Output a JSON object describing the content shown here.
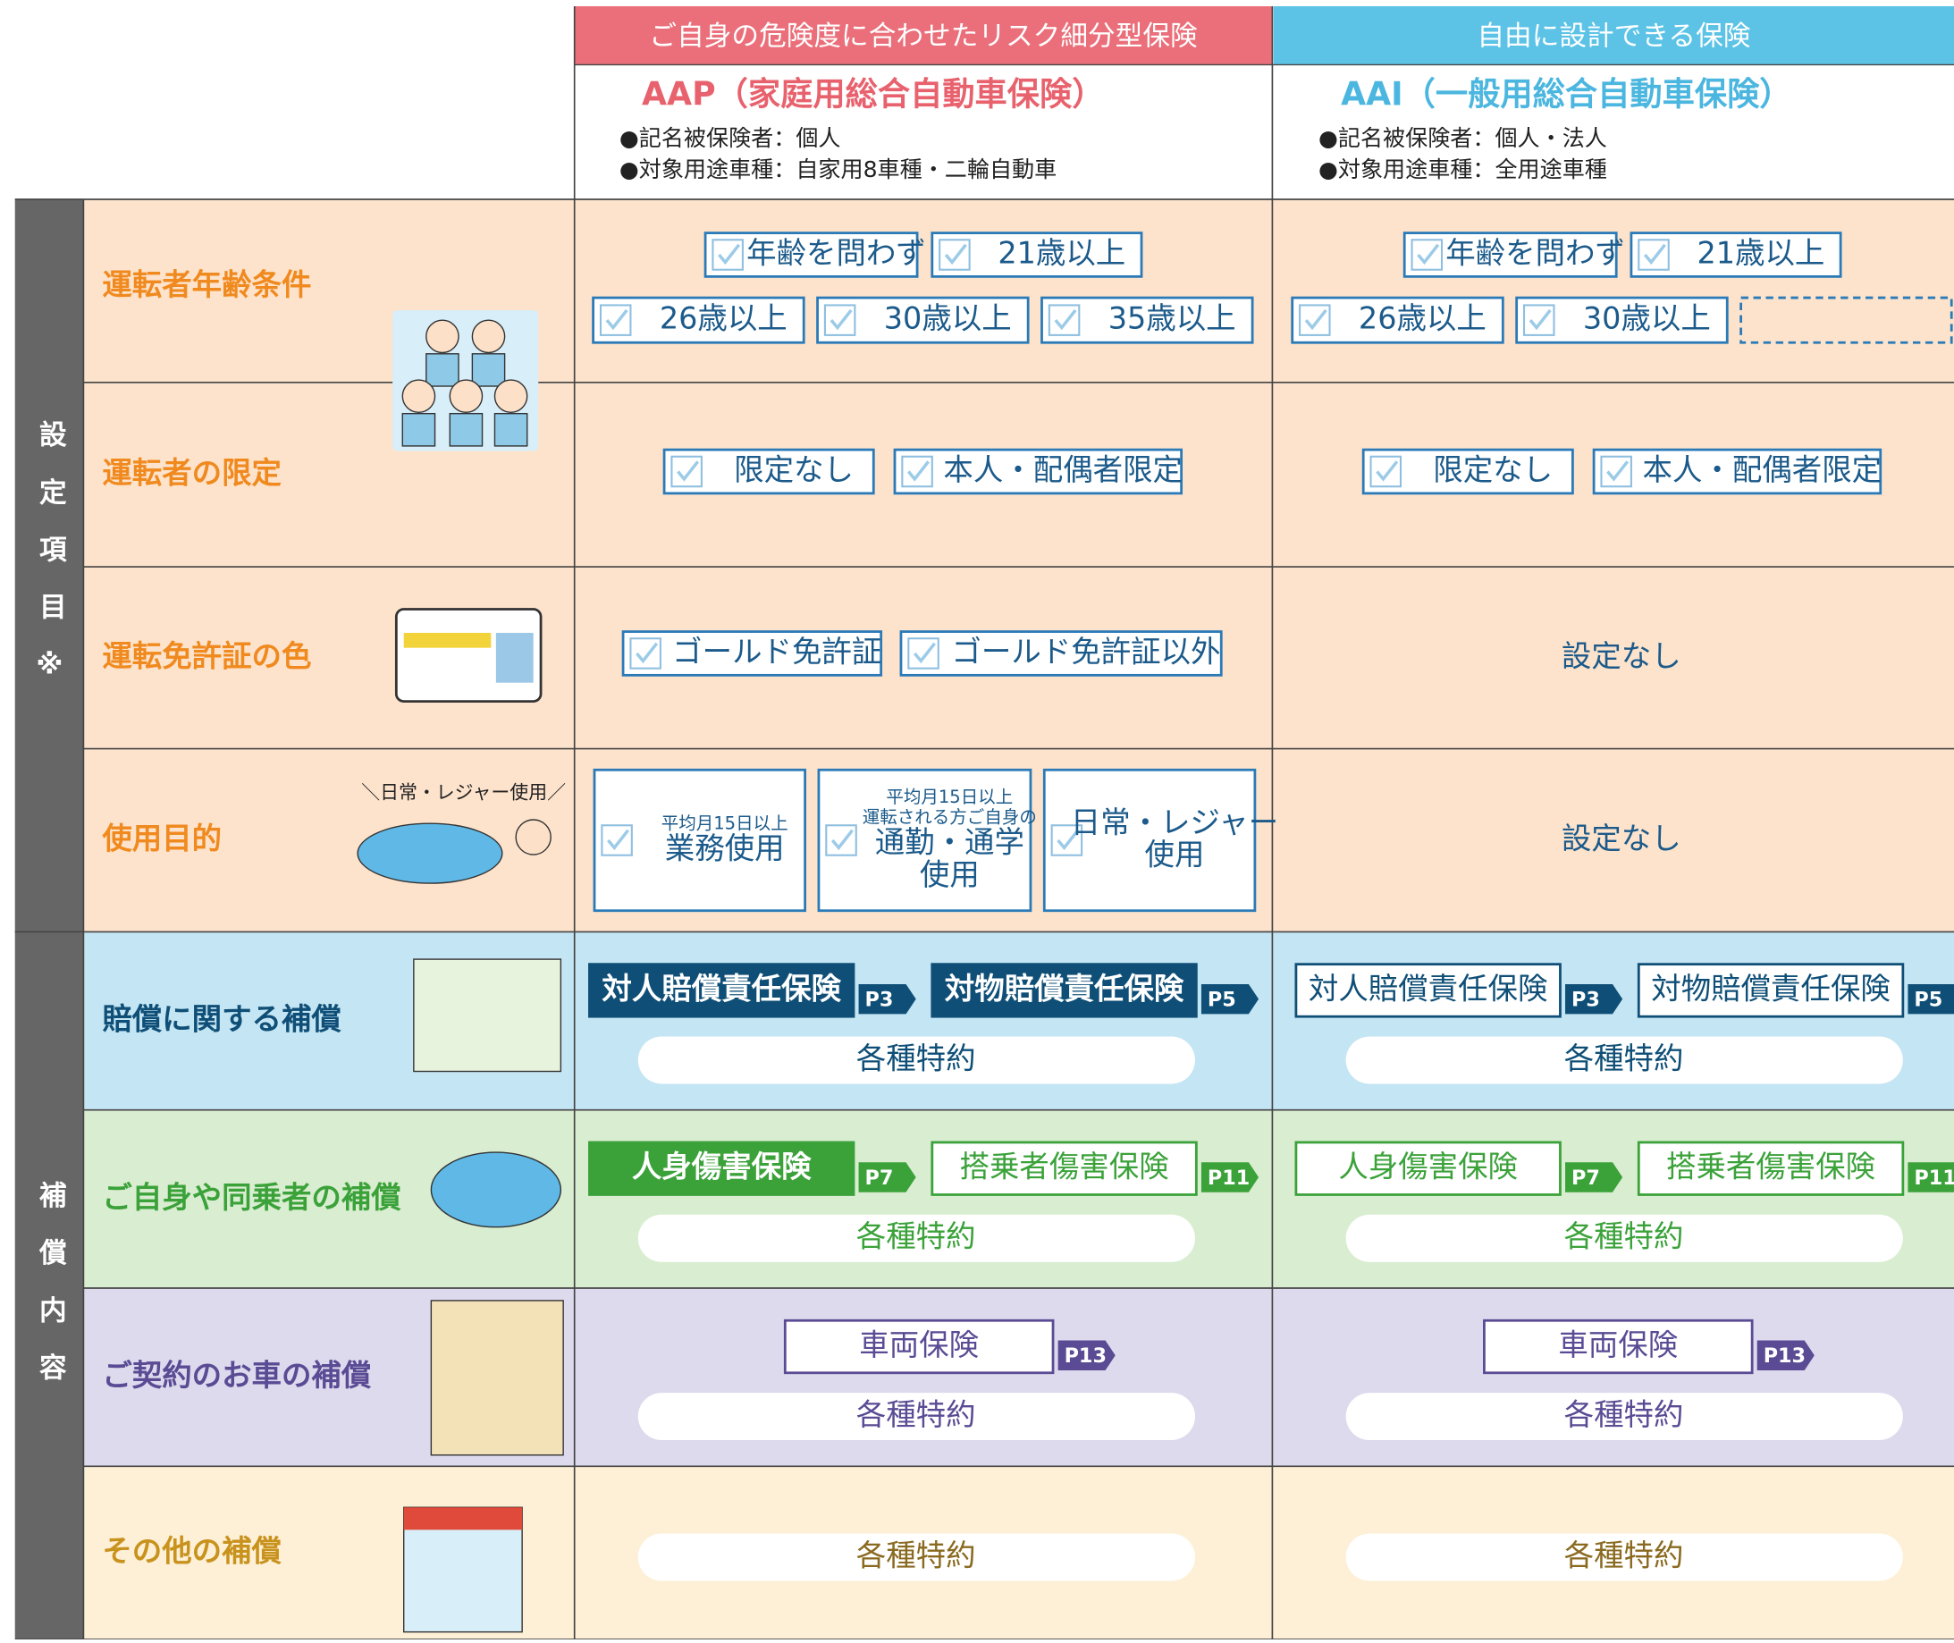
{
  "columns": [
    {
      "header": "ご自身の危険度に合わせたリスク細分型保険",
      "title": "AAP（家庭用総合自動車保険）",
      "notes": [
        "●記名被保険者：個人",
        "●対象用途車種：自家用8車種・二輪自動車"
      ],
      "header_color": "#ea6f7a",
      "title_color": "#e8626e"
    },
    {
      "header": "自由に設計できる保険",
      "title": "AAI（一般用総合自動車保険）",
      "notes": [
        "●記名被保険者：個人・法人",
        "●対象用途車種：全用途車種"
      ],
      "header_color": "#5cc3e7",
      "title_color": "#4bb6df"
    }
  ],
  "settings": {
    "label": "設定項目※",
    "color": "#f08a1f",
    "bg": "#fde3cc",
    "rows": [
      {
        "label": "運転者年齢条件",
        "cells": [
          {
            "options": [
              {
                "label": [
                  "年齢を問わず"
                ]
              },
              {
                "label": [
                  "21歳以上"
                ]
              },
              {
                "label": [
                  "26歳以上"
                ]
              },
              {
                "label": [
                  "30歳以上"
                ]
              },
              {
                "label": [
                  "35歳以上"
                ]
              }
            ]
          },
          {
            "options": [
              {
                "label": [
                  "年齢を問わず"
                ]
              },
              {
                "label": [
                  "21歳以上"
                ]
              },
              {
                "label": [
                  "26歳以上"
                ]
              },
              {
                "label": [
                  "30歳以上"
                ]
              }
            ]
          }
        ]
      },
      {
        "label": "運転者の限定",
        "cells": [
          {
            "options": [
              {
                "label": [
                  "限定なし"
                ]
              },
              {
                "label": [
                  "本人・配偶者限定"
                ]
              }
            ]
          },
          {
            "options": [
              {
                "label": [
                  "限定なし"
                ]
              },
              {
                "label": [
                  "本人・配偶者限定"
                ]
              }
            ]
          }
        ]
      },
      {
        "label": "運転免許証の色",
        "cells": [
          {
            "options": [
              {
                "label": [
                  "ゴールド免許証"
                ]
              },
              {
                "label": [
                  "ゴールド免許証以外"
                ]
              }
            ]
          },
          {
            "text": "設定なし"
          }
        ]
      },
      {
        "label": "使用目的",
        "caption": "＼日常・レジャー使用／",
        "cells": [
          {
            "options": [
              {
                "note": [
                  "平均月15日以上"
                ],
                "label": [
                  "業務使用"
                ]
              },
              {
                "note": [
                  "平均月15日以上",
                  "運転される方ご自身の"
                ],
                "label": [
                  "通勤・通学",
                  "使用"
                ]
              },
              {
                "label": [
                  "日常・レジャー",
                  "使用"
                ]
              }
            ]
          },
          {
            "text": "設定なし"
          }
        ]
      }
    ]
  },
  "coverage": {
    "label": "補償内容",
    "rows": [
      {
        "label": "賠償に関する補償",
        "color": "#0f4f77",
        "bg": "#c4e5f3",
        "cells": [
          {
            "items": [
              {
                "label": "対人賠償責任保険",
                "page": "P3",
                "filled": true
              },
              {
                "label": "対物賠償責任保険",
                "page": "P5",
                "filled": true
              }
            ],
            "extra": "各種特約"
          },
          {
            "items": [
              {
                "label": "対人賠償責任保険",
                "page": "P3",
                "filled": false
              },
              {
                "label": "対物賠償責任保険",
                "page": "P5",
                "filled": false
              }
            ],
            "extra": "各種特約"
          }
        ]
      },
      {
        "label": "ご自身や同乗者の補償",
        "color": "#3ba23a",
        "bg": "#d9edd1",
        "cells": [
          {
            "items": [
              {
                "label": "人身傷害保険",
                "page": "P7",
                "filled": true
              },
              {
                "label": "搭乗者傷害保険",
                "page": "P11",
                "filled": false
              }
            ],
            "extra": "各種特約"
          },
          {
            "items": [
              {
                "label": "人身傷害保険",
                "page": "P7",
                "filled": false
              },
              {
                "label": "搭乗者傷害保険",
                "page": "P11",
                "filled": false
              }
            ],
            "extra": "各種特約"
          }
        ]
      },
      {
        "label": "ご契約のお車の補償",
        "color": "#5a4b94",
        "bg": "#dddaed",
        "cells": [
          {
            "items": [
              {
                "label": "車両保険",
                "page": "P13",
                "filled": false
              }
            ],
            "extra": "各種特約"
          },
          {
            "items": [
              {
                "label": "車両保険",
                "page": "P13",
                "filled": false
              }
            ],
            "extra": "各種特約"
          }
        ]
      },
      {
        "label": "その他の補償",
        "color": "#c8921c",
        "bg": "#fdf0d7",
        "cells": [
          {
            "items": [],
            "extra": "各種特約"
          },
          {
            "items": [],
            "extra": "各種特約"
          }
        ]
      }
    ]
  }
}
